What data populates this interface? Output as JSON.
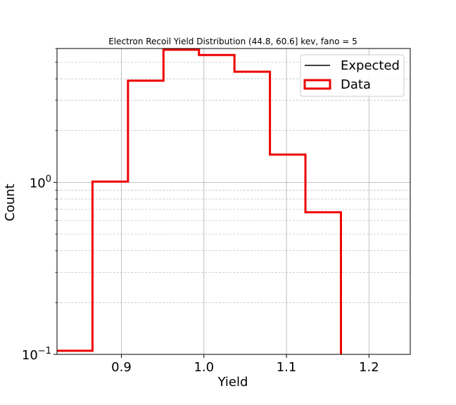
{
  "chart_data": {
    "type": "step-histogram",
    "title": "Electron Recoil Yield Distribution (44.8, 60.6] kev, fano = 5",
    "xlabel": "Yield",
    "ylabel": "Count",
    "xscale": "linear",
    "yscale": "log",
    "xlim": [
      0.822,
      1.25
    ],
    "ylim": [
      0.1,
      6.0
    ],
    "x_ticks": [
      0.9,
      1.0,
      1.1,
      1.2
    ],
    "x_tick_labels": [
      "0.9",
      "1.0",
      "1.1",
      "1.2"
    ],
    "y_major_ticks": [
      {
        "value": 0.1,
        "base": "10",
        "exp": "−1"
      },
      {
        "value": 1.0,
        "base": "10",
        "exp": "0"
      }
    ],
    "y_minor_ticks": [
      0.2,
      0.3,
      0.4,
      0.5,
      0.6,
      0.7,
      0.8,
      0.9,
      2,
      3,
      4,
      5,
      6
    ],
    "grid": {
      "major": true,
      "minor_y": true
    },
    "legend": {
      "position": "top-right",
      "entries": [
        "Expected",
        "Data"
      ]
    },
    "series": [
      {
        "name": "Expected",
        "color": "#000000",
        "edges": [],
        "values": []
      },
      {
        "name": "Data",
        "color": "#ee0000",
        "edges": [
          0.822,
          0.865,
          0.908,
          0.951,
          0.994,
          1.037,
          1.08,
          1.123,
          1.166
        ],
        "values": [
          0.105,
          1.01,
          3.9,
          5.9,
          5.5,
          4.4,
          1.45,
          0.67,
          0.1
        ]
      }
    ]
  }
}
